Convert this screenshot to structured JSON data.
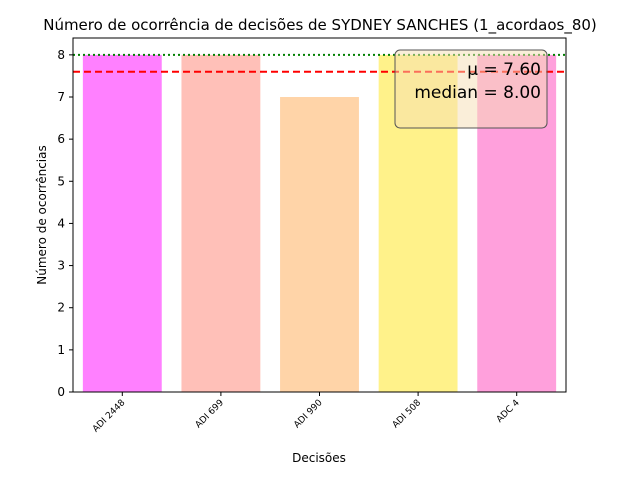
{
  "chart_data": {
    "type": "bar",
    "title": "Número de ocorrência de decisões de SYDNEY SANCHES (1_acordaos_80)",
    "xlabel": "Decisões",
    "ylabel": "Número de ocorrências",
    "categories": [
      "ADI 2448",
      "ADI 699",
      "ADI 990",
      "ADI 508",
      "ADC 4"
    ],
    "values": [
      8,
      8,
      7,
      8,
      8
    ],
    "colors": [
      "#ff80ff",
      "#ffc0b8",
      "#ffd4a8",
      "#fff28a",
      "#ffa0dc"
    ],
    "ylim": [
      0,
      8.4
    ],
    "yticks": [
      "0",
      "1",
      "2",
      "3",
      "4",
      "5",
      "6",
      "7",
      "8"
    ],
    "grid": false,
    "mean": 7.6,
    "median": 8.0,
    "mean_line_color": "#ff0000",
    "median_line_color": "#008000",
    "stats_box": {
      "mean_label": "μ = 7.60",
      "median_label": "median = 8.00",
      "placement": "top-right"
    }
  }
}
